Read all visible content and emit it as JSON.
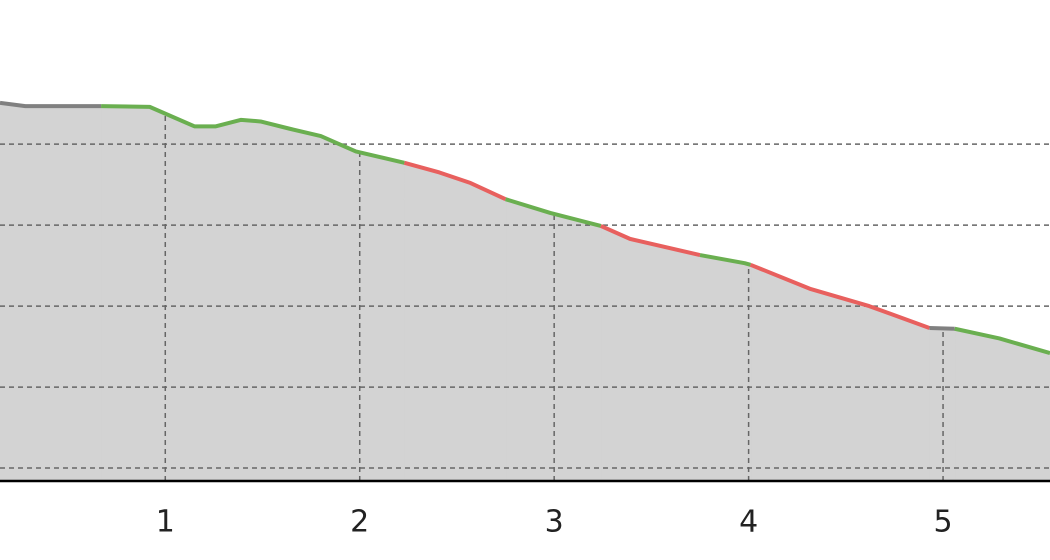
{
  "chart_data": {
    "type": "area-line",
    "xlim": [
      0.15,
      5.55
    ],
    "xticks": [
      1,
      2,
      3,
      4,
      5
    ],
    "ylim": [
      -0.16,
      5.78
    ],
    "yticks": [
      0,
      1,
      2,
      3,
      4
    ],
    "grid": true,
    "fill": "#d3d3d3",
    "series": [
      {
        "color": "#808080",
        "x": [
          0.15,
          0.28,
          0.67
        ],
        "values": [
          4.51,
          4.47,
          4.47
        ]
      },
      {
        "color": "#6aaf50",
        "x": [
          0.67,
          0.92,
          1.15,
          1.26,
          1.39,
          1.49,
          1.64,
          1.8,
          1.98,
          2.23
        ],
        "values": [
          4.47,
          4.46,
          4.22,
          4.22,
          4.3,
          4.28,
          4.19,
          4.1,
          3.91,
          3.77
        ]
      },
      {
        "color": "#e8605e",
        "x": [
          2.23,
          2.41,
          2.57,
          2.75
        ],
        "values": [
          3.77,
          3.65,
          3.52,
          3.32
        ]
      },
      {
        "color": "#6aaf50",
        "x": [
          2.75,
          2.98,
          3.24
        ],
        "values": [
          3.32,
          3.15,
          2.99
        ]
      },
      {
        "color": "#e8605e",
        "x": [
          3.24,
          3.39,
          3.75
        ],
        "values": [
          2.99,
          2.83,
          2.63
        ]
      },
      {
        "color": "#6aaf50",
        "x": [
          3.75,
          3.98,
          4.01
        ],
        "values": [
          2.63,
          2.53,
          2.51
        ]
      },
      {
        "color": "#e8605e",
        "x": [
          4.01,
          4.32,
          4.62,
          4.93
        ],
        "values": [
          2.51,
          2.21,
          2.0,
          1.73
        ]
      },
      {
        "color": "#808080",
        "x": [
          4.93,
          5.06
        ],
        "values": [
          1.73,
          1.72
        ]
      },
      {
        "color": "#6aaf50",
        "x": [
          5.06,
          5.29,
          5.55
        ],
        "values": [
          1.72,
          1.6,
          1.42
        ]
      }
    ]
  }
}
